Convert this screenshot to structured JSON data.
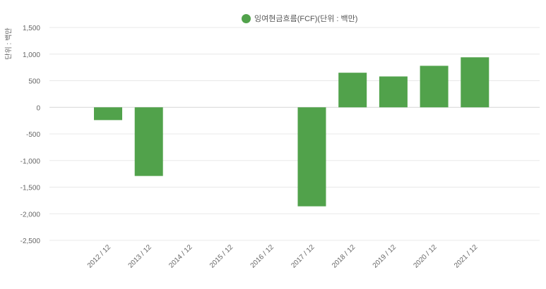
{
  "chart_data": {
    "type": "bar",
    "categories": [
      "2012 / 12",
      "2013 / 12",
      "2014 / 12",
      "2015 / 12",
      "2016 / 12",
      "2017 / 12",
      "2018 / 12",
      "2019 / 12",
      "2020 / 12",
      "2021 / 12"
    ],
    "series": [
      {
        "name": "잉여현금흐름(FCF)(단위 : 백만)",
        "values": [
          -240,
          -1290,
          null,
          null,
          null,
          -1860,
          650,
          580,
          780,
          940
        ]
      }
    ],
    "ylabel": "단위 : 백만",
    "ylim": [
      -2500,
      1500
    ],
    "yticks": [
      1500,
      1000,
      500,
      0,
      -500,
      -1000,
      -1500,
      -2000,
      -2500
    ],
    "ytick_labels": [
      "1,500",
      "1,000",
      "500",
      "0",
      "-500",
      "-1,000",
      "-1,500",
      "-2,000",
      "-2,500"
    ],
    "grid": true,
    "legend_position": "top-center",
    "colors": {
      "bar": "#51a24b",
      "grid": "#e8e8e8",
      "axis_text": "#666666"
    }
  }
}
